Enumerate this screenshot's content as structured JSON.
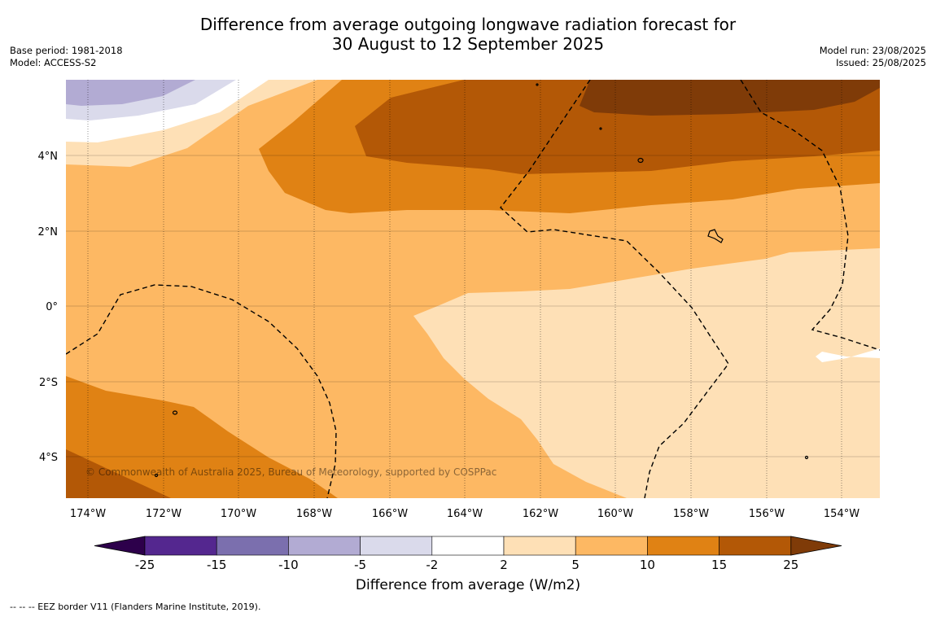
{
  "title": {
    "line1": "Difference from average outgoing longwave radiation forecast for",
    "line2": "30 August to 12 September 2025"
  },
  "meta_left": {
    "base_period": "Base period: 1981-2018",
    "model": "Model: ACCESS-S2"
  },
  "meta_right": {
    "model_run": "Model run: 23/08/2025",
    "issued": "Issued: 25/08/2025"
  },
  "map": {
    "lat_labels": [
      "4°N",
      "2°N",
      "0°",
      "2°S",
      "4°S"
    ],
    "lon_labels": [
      "174°W",
      "172°W",
      "170°W",
      "168°W",
      "166°W",
      "164°W",
      "162°W",
      "160°W",
      "158°W",
      "156°W",
      "154°W"
    ],
    "copyright": "© Commonwealth of Australia 2025, Bureau of Meteorology, supported by COSPPac"
  },
  "colorbar": {
    "title": "Difference from average (W/m2)",
    "ticks": [
      "-25",
      "-15",
      "-10",
      "-5",
      "-2",
      "2",
      "5",
      "10",
      "15",
      "25"
    ],
    "colors": [
      "#54278f",
      "#7b6fae",
      "#b2abd3",
      "#dadaeb",
      "#ffffff",
      "#fee0b6",
      "#fdb863",
      "#e08214",
      "#b35806"
    ],
    "under_color": "#2d004b",
    "over_color": "#7f3b08"
  },
  "footnote": "-- -- -- EEZ border V11 (Flanders Marine Institute, 2019)."
}
